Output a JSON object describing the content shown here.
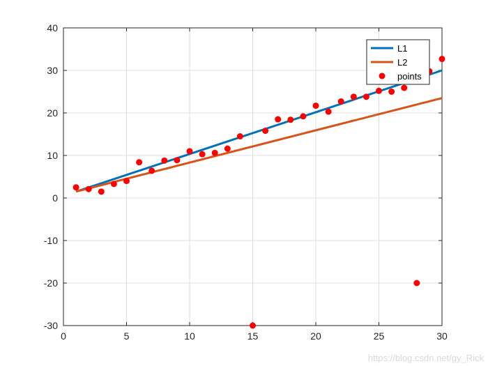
{
  "chart_data": {
    "type": "scatter",
    "title": "",
    "xlabel": "",
    "ylabel": "",
    "xlim": [
      0,
      30
    ],
    "ylim": [
      -30,
      40
    ],
    "x_ticks": [
      0,
      5,
      10,
      15,
      20,
      25,
      30
    ],
    "y_ticks": [
      -30,
      -20,
      -10,
      0,
      10,
      20,
      30,
      40
    ],
    "grid": true,
    "legend_position": "top-right",
    "series": [
      {
        "name": "L1",
        "kind": "line",
        "color": "#0072BD",
        "x": [
          1,
          30
        ],
        "y": [
          1.5,
          30.0
        ]
      },
      {
        "name": "L2",
        "kind": "line",
        "color": "#D95319",
        "x": [
          1,
          30
        ],
        "y": [
          1.5,
          23.5
        ]
      },
      {
        "name": "points",
        "kind": "markers",
        "color": "#ff0000",
        "x": [
          1,
          2,
          3,
          4,
          5,
          6,
          7,
          8,
          9,
          10,
          11,
          12,
          13,
          14,
          15,
          16,
          17,
          18,
          19,
          20,
          21,
          22,
          23,
          24,
          25,
          26,
          27,
          28,
          29,
          30
        ],
        "y": [
          2.5,
          2.1,
          1.5,
          3.3,
          4.0,
          8.4,
          6.4,
          8.8,
          8.9,
          11.0,
          10.3,
          10.6,
          11.6,
          14.5,
          -30.0,
          15.8,
          18.5,
          18.4,
          19.2,
          21.7,
          20.3,
          22.7,
          23.8,
          23.8,
          25.2,
          25.0,
          25.9,
          -20.0,
          29.8,
          32.7
        ]
      }
    ]
  },
  "watermark": "https://blog.csdn.net/gy_Rick"
}
